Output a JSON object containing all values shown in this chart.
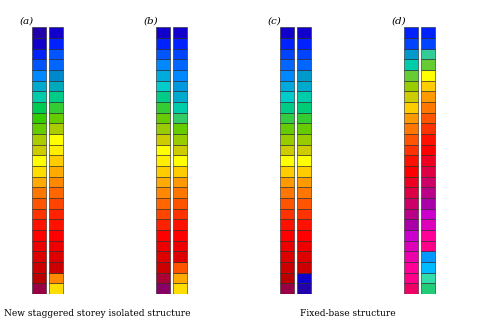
{
  "title_a": "(a)",
  "title_b": "(b)",
  "title_c": "(c)",
  "title_d": "(d)",
  "label_bottom1": "New staggered storey isolated structure",
  "label_bottom2": "Fixed-base structure",
  "n_stories": 25,
  "background_color": "#ffffff",
  "panel_colors_a_left": [
    "#2200aa",
    "#1100cc",
    "#0022ff",
    "#0055ff",
    "#0088ff",
    "#00aacc",
    "#00ccaa",
    "#00cc55",
    "#33cc00",
    "#66cc00",
    "#aacc00",
    "#cccc00",
    "#ffff00",
    "#ffdd00",
    "#ffaa00",
    "#ff7700",
    "#ff5500",
    "#ff3300",
    "#ff1100",
    "#ff0000",
    "#ee0000",
    "#dd0000",
    "#cc0000",
    "#bb0000",
    "#990044"
  ],
  "panel_colors_a_right": [
    "#1100cc",
    "#0022ff",
    "#0055ff",
    "#0066ff",
    "#0088cc",
    "#00aabb",
    "#00cc88",
    "#33cc33",
    "#66cc00",
    "#aacc00",
    "#ffff00",
    "#ffee00",
    "#ffcc00",
    "#ffaa00",
    "#ff8800",
    "#ff6600",
    "#ff4400",
    "#ff2200",
    "#ff1100",
    "#ff0000",
    "#ee0000",
    "#dd0000",
    "#cc0000",
    "#ff8800",
    "#ffdd00"
  ],
  "panel_colors_b_left": [
    "#1100cc",
    "#0022ff",
    "#0055ff",
    "#0088ff",
    "#00aadd",
    "#00cccc",
    "#00cc88",
    "#33cc33",
    "#66cc00",
    "#99cc00",
    "#cccc00",
    "#ffff00",
    "#ffee00",
    "#ffcc00",
    "#ffaa00",
    "#ff8800",
    "#ff6600",
    "#ff4400",
    "#ff2200",
    "#ff0000",
    "#ee0000",
    "#dd0000",
    "#cc0000",
    "#aa0033",
    "#880066"
  ],
  "panel_colors_b_right": [
    "#1100cc",
    "#0022ff",
    "#0044ff",
    "#0066ff",
    "#0088ff",
    "#0099dd",
    "#00aacc",
    "#00ccaa",
    "#33cc66",
    "#66cc00",
    "#99cc00",
    "#cccc00",
    "#ffff00",
    "#ffcc00",
    "#ff9900",
    "#ff7700",
    "#ff5500",
    "#ff3300",
    "#ff1100",
    "#ff0000",
    "#ee0000",
    "#dd0000",
    "#ff5500",
    "#ffaa00",
    "#ffdd00"
  ],
  "panel_colors_c_left": [
    "#1100cc",
    "#0022ff",
    "#0044ff",
    "#0066ff",
    "#0088ff",
    "#00aadd",
    "#00cccc",
    "#00cc88",
    "#33cc44",
    "#66cc00",
    "#99cc00",
    "#cccc00",
    "#ffff00",
    "#ffcc00",
    "#ff9900",
    "#ff7700",
    "#ff5500",
    "#ff3300",
    "#ff1100",
    "#ff0000",
    "#ee0000",
    "#dd0000",
    "#cc0000",
    "#bb0000",
    "#990044"
  ],
  "panel_colors_c_right": [
    "#1100cc",
    "#0022ff",
    "#0044ff",
    "#0066ff",
    "#0099cc",
    "#00aacc",
    "#00ccaa",
    "#00cc77",
    "#33cc33",
    "#66cc00",
    "#99cc00",
    "#cccc00",
    "#ffff00",
    "#ffcc00",
    "#ff9900",
    "#ff7700",
    "#ff5500",
    "#ff3300",
    "#ff1100",
    "#ff0000",
    "#ee0000",
    "#dd0000",
    "#cc0000",
    "#1100cc",
    "#2200aa"
  ],
  "panel_colors_d_left": [
    "#0022ff",
    "#0044ff",
    "#0099cc",
    "#00ccaa",
    "#66cc33",
    "#99cc00",
    "#cccc00",
    "#ffcc00",
    "#ff9900",
    "#ff7700",
    "#ff5500",
    "#ff3300",
    "#ff1100",
    "#ff0000",
    "#ee0022",
    "#dd0044",
    "#cc0066",
    "#bb0088",
    "#aa00aa",
    "#cc00cc",
    "#dd00bb",
    "#ee00aa",
    "#ff0099",
    "#ff0088",
    "#ee0066"
  ],
  "panel_colors_d_right": [
    "#0022ff",
    "#0044ff",
    "#33cc99",
    "#66cc33",
    "#ffff00",
    "#ffcc00",
    "#ff9900",
    "#ff7700",
    "#ff5500",
    "#ff3300",
    "#ff1100",
    "#ff0000",
    "#ee0022",
    "#dd0044",
    "#cc0066",
    "#bb0088",
    "#aa00aa",
    "#cc00cc",
    "#dd00bb",
    "#ff0099",
    "#ff0088",
    "#0099ff",
    "#00bbff",
    "#33ddaa",
    "#22cc77"
  ]
}
